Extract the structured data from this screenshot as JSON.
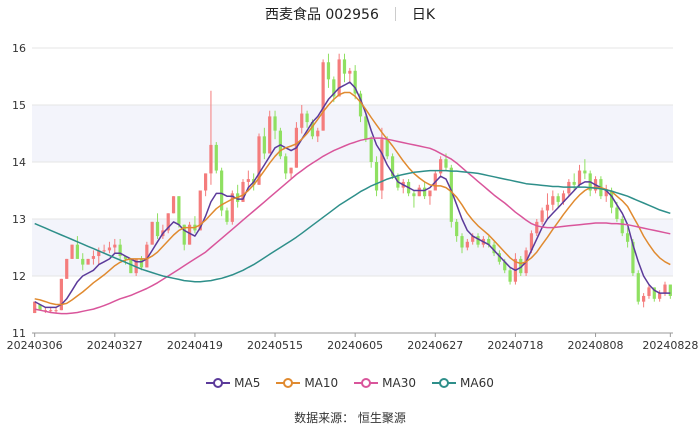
{
  "header": {
    "stock": "西麦食品 002956",
    "period": "日K"
  },
  "source": "数据来源：   恒生聚源",
  "colors": {
    "up": "#f47c7c",
    "down": "#8fe061",
    "band": "#f3f4fb",
    "grid": "#e6e6e6",
    "MA5": "#5b3a9a",
    "MA10": "#e08a2f",
    "MA30": "#d9559b",
    "MA60": "#2e8f8a"
  },
  "chart_data": {
    "type": "candlestick",
    "ylim": [
      11,
      16
    ],
    "y_ticks": [
      11,
      12,
      13,
      14,
      15,
      16
    ],
    "x_tick_labels": [
      "20240306",
      "20240327",
      "20240419",
      "20240515",
      "20240605",
      "20240627",
      "20240718",
      "20240808",
      "20240828"
    ],
    "x_tick_index": [
      0,
      15,
      30,
      45,
      60,
      75,
      90,
      105,
      119
    ],
    "ohlc": [
      [
        11.35,
        11.55,
        11.35,
        11.55
      ],
      [
        11.5,
        11.5,
        11.4,
        11.4
      ],
      [
        11.4,
        11.45,
        11.35,
        11.4
      ],
      [
        11.4,
        11.45,
        11.35,
        11.4
      ],
      [
        11.4,
        11.45,
        11.35,
        11.4
      ],
      [
        11.4,
        11.95,
        11.4,
        11.95
      ],
      [
        11.95,
        12.3,
        11.95,
        12.3
      ],
      [
        12.3,
        12.55,
        12.3,
        12.55
      ],
      [
        12.55,
        12.7,
        12.3,
        12.3
      ],
      [
        12.3,
        12.4,
        12.1,
        12.2
      ],
      [
        12.2,
        12.3,
        12.2,
        12.3
      ],
      [
        12.3,
        12.45,
        12.2,
        12.35
      ],
      [
        12.35,
        12.5,
        12.2,
        12.45
      ],
      [
        12.45,
        12.55,
        12.4,
        12.45
      ],
      [
        12.45,
        12.6,
        12.4,
        12.5
      ],
      [
        12.5,
        12.65,
        12.4,
        12.55
      ],
      [
        12.55,
        12.65,
        12.3,
        12.35
      ],
      [
        12.35,
        12.35,
        12.2,
        12.3
      ],
      [
        12.3,
        12.3,
        12.05,
        12.05
      ],
      [
        12.05,
        12.3,
        12.0,
        12.3
      ],
      [
        12.3,
        12.35,
        12.1,
        12.15
      ],
      [
        12.15,
        12.6,
        12.15,
        12.55
      ],
      [
        12.55,
        12.95,
        12.55,
        12.95
      ],
      [
        12.95,
        13.1,
        12.65,
        12.7
      ],
      [
        12.7,
        12.9,
        12.65,
        12.8
      ],
      [
        12.8,
        13.1,
        12.75,
        13.1
      ],
      [
        13.1,
        13.4,
        13.1,
        13.4
      ],
      [
        13.4,
        13.4,
        12.85,
        12.9
      ],
      [
        12.9,
        12.9,
        12.45,
        12.55
      ],
      [
        12.55,
        12.95,
        12.55,
        12.9
      ],
      [
        12.9,
        13.05,
        12.75,
        12.8
      ],
      [
        12.8,
        13.5,
        12.8,
        13.5
      ],
      [
        13.5,
        13.8,
        13.4,
        13.8
      ],
      [
        13.8,
        15.25,
        13.6,
        14.3
      ],
      [
        14.3,
        14.35,
        13.8,
        13.85
      ],
      [
        13.85,
        13.9,
        13.05,
        13.15
      ],
      [
        13.15,
        13.2,
        12.9,
        12.95
      ],
      [
        12.95,
        13.5,
        12.9,
        13.45
      ],
      [
        13.45,
        13.6,
        13.2,
        13.3
      ],
      [
        13.3,
        13.7,
        13.3,
        13.65
      ],
      [
        13.65,
        13.85,
        13.5,
        13.7
      ],
      [
        13.7,
        13.8,
        13.5,
        13.6
      ],
      [
        13.6,
        14.5,
        13.6,
        14.45
      ],
      [
        14.45,
        14.6,
        14.05,
        14.15
      ],
      [
        14.15,
        14.9,
        14.15,
        14.8
      ],
      [
        14.8,
        14.9,
        14.4,
        14.55
      ],
      [
        14.55,
        14.6,
        14.05,
        14.1
      ],
      [
        14.1,
        14.15,
        13.7,
        13.8
      ],
      [
        13.8,
        13.9,
        13.7,
        13.9
      ],
      [
        13.9,
        14.7,
        13.9,
        14.6
      ],
      [
        14.6,
        15.0,
        14.5,
        14.85
      ],
      [
        14.85,
        14.9,
        14.6,
        14.7
      ],
      [
        14.7,
        14.75,
        14.4,
        14.45
      ],
      [
        14.45,
        14.6,
        14.35,
        14.55
      ],
      [
        14.55,
        15.8,
        14.55,
        15.75
      ],
      [
        15.75,
        15.9,
        15.3,
        15.45
      ],
      [
        15.45,
        15.5,
        15.05,
        15.15
      ],
      [
        15.15,
        15.9,
        15.15,
        15.8
      ],
      [
        15.8,
        15.9,
        15.4,
        15.55
      ],
      [
        15.55,
        15.65,
        15.4,
        15.6
      ],
      [
        15.6,
        15.7,
        15.1,
        15.2
      ],
      [
        15.2,
        15.25,
        14.7,
        14.8
      ],
      [
        14.8,
        14.85,
        14.35,
        14.4
      ],
      [
        14.4,
        14.45,
        13.9,
        14.0
      ],
      [
        14.0,
        14.1,
        13.4,
        13.5
      ],
      [
        13.5,
        14.6,
        13.35,
        14.4
      ],
      [
        14.4,
        14.45,
        14.05,
        14.1
      ],
      [
        14.1,
        14.15,
        13.7,
        13.75
      ],
      [
        13.75,
        13.8,
        13.5,
        13.55
      ],
      [
        13.55,
        13.7,
        13.45,
        13.65
      ],
      [
        13.65,
        13.7,
        13.4,
        13.45
      ],
      [
        13.45,
        13.5,
        13.2,
        13.4
      ],
      [
        13.4,
        13.6,
        13.4,
        13.55
      ],
      [
        13.55,
        13.65,
        13.35,
        13.4
      ],
      [
        13.4,
        13.5,
        13.25,
        13.5
      ],
      [
        13.5,
        13.85,
        13.5,
        13.8
      ],
      [
        13.8,
        14.1,
        13.75,
        14.05
      ],
      [
        14.05,
        14.15,
        13.85,
        13.9
      ],
      [
        13.9,
        13.95,
        12.85,
        12.95
      ],
      [
        12.95,
        13.0,
        12.6,
        12.7
      ],
      [
        12.7,
        12.75,
        12.4,
        12.5
      ],
      [
        12.5,
        12.65,
        12.45,
        12.6
      ],
      [
        12.6,
        12.75,
        12.55,
        12.7
      ],
      [
        12.7,
        12.75,
        12.5,
        12.55
      ],
      [
        12.55,
        12.7,
        12.5,
        12.65
      ],
      [
        12.65,
        12.7,
        12.5,
        12.55
      ],
      [
        12.55,
        12.6,
        12.35,
        12.4
      ],
      [
        12.4,
        12.45,
        12.2,
        12.25
      ],
      [
        12.25,
        12.3,
        12.05,
        12.1
      ],
      [
        12.1,
        12.15,
        11.85,
        11.9
      ],
      [
        11.9,
        12.4,
        11.85,
        12.3
      ],
      [
        12.3,
        12.35,
        12.0,
        12.05
      ],
      [
        12.05,
        12.5,
        12.0,
        12.45
      ],
      [
        12.45,
        12.8,
        12.4,
        12.75
      ],
      [
        12.75,
        13.0,
        12.7,
        12.95
      ],
      [
        12.95,
        13.2,
        12.9,
        13.15
      ],
      [
        13.15,
        13.45,
        13.0,
        13.25
      ],
      [
        13.25,
        13.5,
        13.15,
        13.4
      ],
      [
        13.4,
        13.45,
        13.2,
        13.3
      ],
      [
        13.3,
        13.5,
        13.25,
        13.45
      ],
      [
        13.45,
        13.7,
        13.4,
        13.65
      ],
      [
        13.65,
        13.8,
        13.5,
        13.6
      ],
      [
        13.6,
        13.95,
        13.55,
        13.85
      ],
      [
        13.85,
        14.05,
        13.7,
        13.8
      ],
      [
        13.8,
        13.85,
        13.4,
        13.5
      ],
      [
        13.5,
        13.75,
        13.45,
        13.7
      ],
      [
        13.7,
        13.75,
        13.35,
        13.4
      ],
      [
        13.4,
        13.6,
        13.3,
        13.5
      ],
      [
        13.5,
        13.55,
        13.1,
        13.2
      ],
      [
        13.2,
        13.3,
        12.95,
        13.0
      ],
      [
        13.0,
        13.05,
        12.7,
        12.75
      ],
      [
        12.75,
        12.85,
        12.5,
        12.6
      ],
      [
        12.6,
        12.65,
        12.0,
        12.05
      ],
      [
        12.05,
        12.1,
        11.5,
        11.55
      ],
      [
        11.55,
        11.7,
        11.45,
        11.65
      ],
      [
        11.65,
        11.85,
        11.6,
        11.8
      ],
      [
        11.8,
        11.8,
        11.55,
        11.6
      ],
      [
        11.6,
        11.75,
        11.55,
        11.7
      ],
      [
        11.7,
        11.9,
        11.65,
        11.85
      ],
      [
        11.85,
        11.85,
        11.6,
        11.65
      ]
    ],
    "series": [
      {
        "name": "MA5",
        "values": [
          11.55,
          11.5,
          11.45,
          11.45,
          11.45,
          11.5,
          11.6,
          11.75,
          11.9,
          12.0,
          12.05,
          12.1,
          12.2,
          12.25,
          12.3,
          12.4,
          12.4,
          12.35,
          12.3,
          12.25,
          12.25,
          12.3,
          12.45,
          12.6,
          12.75,
          12.85,
          12.95,
          12.9,
          12.8,
          12.75,
          12.7,
          12.85,
          13.05,
          13.3,
          13.45,
          13.45,
          13.4,
          13.4,
          13.35,
          13.35,
          13.55,
          13.65,
          13.8,
          13.95,
          14.1,
          14.25,
          14.3,
          14.25,
          14.2,
          14.25,
          14.4,
          14.55,
          14.7,
          14.8,
          14.95,
          15.1,
          15.2,
          15.3,
          15.35,
          15.4,
          15.3,
          15.1,
          14.85,
          14.55,
          14.3,
          14.15,
          13.95,
          13.8,
          13.65,
          13.6,
          13.55,
          13.5,
          13.5,
          13.5,
          13.55,
          13.65,
          13.75,
          13.7,
          13.5,
          13.25,
          13.0,
          12.8,
          12.7,
          12.65,
          12.6,
          12.55,
          12.45,
          12.35,
          12.25,
          12.15,
          12.1,
          12.15,
          12.25,
          12.45,
          12.65,
          12.85,
          13.0,
          13.1,
          13.2,
          13.3,
          13.4,
          13.5,
          13.6,
          13.65,
          13.65,
          13.6,
          13.55,
          13.5,
          13.4,
          13.25,
          13.1,
          12.9,
          12.55,
          12.25,
          12.0,
          11.85,
          11.75,
          11.7,
          11.7,
          11.7
        ]
      },
      {
        "name": "MA10",
        "values": [
          11.6,
          11.58,
          11.55,
          11.52,
          11.5,
          11.5,
          11.52,
          11.58,
          11.65,
          11.72,
          11.8,
          11.88,
          11.95,
          12.02,
          12.1,
          12.18,
          12.24,
          12.28,
          12.3,
          12.3,
          12.3,
          12.3,
          12.35,
          12.42,
          12.52,
          12.62,
          12.72,
          12.8,
          12.85,
          12.85,
          12.85,
          12.9,
          12.98,
          13.08,
          13.18,
          13.25,
          13.3,
          13.35,
          13.38,
          13.42,
          13.5,
          13.6,
          13.72,
          13.85,
          13.98,
          14.1,
          14.2,
          14.25,
          14.28,
          14.32,
          14.4,
          14.5,
          14.62,
          14.75,
          14.88,
          15.0,
          15.1,
          15.18,
          15.22,
          15.22,
          15.15,
          15.05,
          14.92,
          14.78,
          14.65,
          14.52,
          14.4,
          14.28,
          14.15,
          14.02,
          13.9,
          13.8,
          13.72,
          13.65,
          13.6,
          13.58,
          13.58,
          13.55,
          13.48,
          13.38,
          13.25,
          13.1,
          12.98,
          12.88,
          12.8,
          12.72,
          12.62,
          12.52,
          12.42,
          12.32,
          12.25,
          12.22,
          12.25,
          12.32,
          12.42,
          12.55,
          12.68,
          12.82,
          12.95,
          13.08,
          13.2,
          13.32,
          13.42,
          13.5,
          13.55,
          13.55,
          13.55,
          13.52,
          13.48,
          13.4,
          13.32,
          13.22,
          13.05,
          12.88,
          12.7,
          12.55,
          12.42,
          12.32,
          12.25,
          12.2
        ]
      },
      {
        "name": "MA30",
        "values": [
          11.42,
          11.4,
          11.38,
          11.36,
          11.35,
          11.34,
          11.34,
          11.35,
          11.36,
          11.38,
          11.4,
          11.42,
          11.45,
          11.48,
          11.52,
          11.56,
          11.6,
          11.63,
          11.66,
          11.7,
          11.74,
          11.78,
          11.83,
          11.88,
          11.94,
          12.0,
          12.06,
          12.12,
          12.18,
          12.24,
          12.3,
          12.36,
          12.42,
          12.5,
          12.58,
          12.66,
          12.74,
          12.82,
          12.9,
          12.98,
          13.06,
          13.14,
          13.22,
          13.3,
          13.38,
          13.46,
          13.54,
          13.62,
          13.7,
          13.78,
          13.85,
          13.92,
          13.98,
          14.04,
          14.1,
          14.15,
          14.2,
          14.24,
          14.28,
          14.32,
          14.35,
          14.38,
          14.4,
          14.42,
          14.42,
          14.42,
          14.4,
          14.38,
          14.36,
          14.34,
          14.32,
          14.3,
          14.28,
          14.26,
          14.24,
          14.2,
          14.15,
          14.1,
          14.05,
          13.98,
          13.9,
          13.82,
          13.74,
          13.66,
          13.58,
          13.5,
          13.42,
          13.35,
          13.28,
          13.2,
          13.12,
          13.05,
          12.98,
          12.92,
          12.88,
          12.86,
          12.85,
          12.85,
          12.86,
          12.87,
          12.88,
          12.89,
          12.9,
          12.91,
          12.92,
          12.93,
          12.93,
          12.93,
          12.92,
          12.92,
          12.91,
          12.9,
          12.88,
          12.86,
          12.84,
          12.82,
          12.8,
          12.78,
          12.76,
          12.74
        ]
      },
      {
        "name": "MA60",
        "values": [
          12.92,
          12.88,
          12.84,
          12.8,
          12.76,
          12.72,
          12.68,
          12.64,
          12.6,
          12.56,
          12.52,
          12.48,
          12.44,
          12.4,
          12.36,
          12.32,
          12.28,
          12.24,
          12.2,
          12.16,
          12.12,
          12.09,
          12.06,
          12.03,
          12.0,
          11.98,
          11.96,
          11.94,
          11.92,
          11.91,
          11.9,
          11.9,
          11.91,
          11.92,
          11.94,
          11.96,
          11.99,
          12.02,
          12.06,
          12.1,
          12.15,
          12.2,
          12.26,
          12.32,
          12.38,
          12.44,
          12.5,
          12.56,
          12.62,
          12.68,
          12.75,
          12.82,
          12.89,
          12.96,
          13.03,
          13.1,
          13.17,
          13.24,
          13.3,
          13.36,
          13.42,
          13.48,
          13.53,
          13.58,
          13.62,
          13.66,
          13.7,
          13.73,
          13.76,
          13.78,
          13.8,
          13.82,
          13.83,
          13.84,
          13.85,
          13.85,
          13.85,
          13.85,
          13.84,
          13.84,
          13.83,
          13.82,
          13.81,
          13.8,
          13.78,
          13.76,
          13.74,
          13.72,
          13.7,
          13.68,
          13.66,
          13.64,
          13.62,
          13.61,
          13.6,
          13.59,
          13.58,
          13.57,
          13.57,
          13.56,
          13.56,
          13.56,
          13.56,
          13.56,
          13.55,
          13.54,
          13.53,
          13.51,
          13.49,
          13.46,
          13.43,
          13.4,
          13.36,
          13.32,
          13.28,
          13.24,
          13.2,
          13.16,
          13.13,
          13.1
        ]
      }
    ]
  }
}
